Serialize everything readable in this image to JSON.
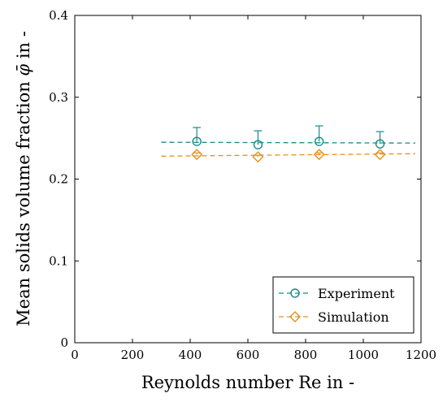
{
  "chart_data": {
    "type": "scatter",
    "xlabel": "Reynolds number Re in -",
    "ylabel_prefix": "Mean solids volume fraction ",
    "ylabel_symbol": "φ̄",
    "ylabel_suffix": " in -",
    "xlim": [
      0,
      1200
    ],
    "ylim": [
      0,
      0.4
    ],
    "xticks": [
      0,
      200,
      400,
      600,
      800,
      1000,
      1200
    ],
    "yticks": [
      0,
      0.1,
      0.2,
      0.3,
      0.4
    ],
    "xtick_labels": [
      "0",
      "200",
      "400",
      "600",
      "800",
      "1000",
      "1200"
    ],
    "ytick_labels": [
      "0",
      "0.1",
      "0.2",
      "0.3",
      "0.4"
    ],
    "grid": false,
    "legend_position": "bottom-right",
    "series": [
      {
        "name": "Experiment",
        "marker": "circle",
        "color": "#1a8a8a",
        "x": [
          423,
          635,
          847,
          1058
        ],
        "y": [
          0.246,
          0.242,
          0.246,
          0.243
        ],
        "err_upper": [
          0.017,
          0.017,
          0.019,
          0.015
        ],
        "fit_line": {
          "x": [
            300,
            1180
          ],
          "y": [
            0.245,
            0.244
          ]
        }
      },
      {
        "name": "Simulation",
        "marker": "diamond",
        "color": "#e8901c",
        "x": [
          423,
          635,
          847,
          1058
        ],
        "y": [
          0.23,
          0.227,
          0.23,
          0.23
        ],
        "err_upper": [
          0.002,
          0.002,
          0.002,
          0.002
        ],
        "fit_line": {
          "x": [
            300,
            1180
          ],
          "y": [
            0.228,
            0.231
          ]
        }
      }
    ]
  }
}
